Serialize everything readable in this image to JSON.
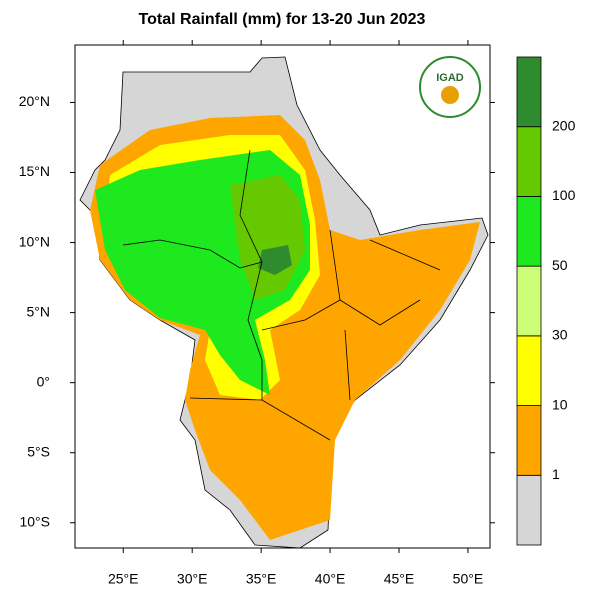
{
  "title": "Total Rainfall (mm) for 13-20 Jun 2023",
  "logo": "IGAD",
  "map": {
    "xlim": [
      21.5,
      51.6
    ],
    "ylim": [
      -11.8,
      24.1
    ],
    "xticks": [
      {
        "value": 25,
        "label": "25°E"
      },
      {
        "value": 30,
        "label": "30°E"
      },
      {
        "value": 35,
        "label": "35°E"
      },
      {
        "value": 40,
        "label": "40°E"
      },
      {
        "value": 45,
        "label": "45°E"
      },
      {
        "value": 50,
        "label": "50°E"
      }
    ],
    "yticks": [
      {
        "value": 20,
        "label": "20°N"
      },
      {
        "value": 15,
        "label": "15°N"
      },
      {
        "value": 10,
        "label": "10°N"
      },
      {
        "value": 5,
        "label": "5°N"
      },
      {
        "value": 0,
        "label": "0°"
      },
      {
        "value": -5,
        "label": "5°S"
      },
      {
        "value": -10,
        "label": "10°S"
      }
    ]
  },
  "colorbar": {
    "levels": [
      1,
      10,
      30,
      50,
      100,
      200
    ],
    "colors": [
      "#d6d6d6",
      "#ffa500",
      "#ffff00",
      "#ccff77",
      "#1ee81e",
      "#66c800",
      "#2e8b2e"
    ]
  }
}
